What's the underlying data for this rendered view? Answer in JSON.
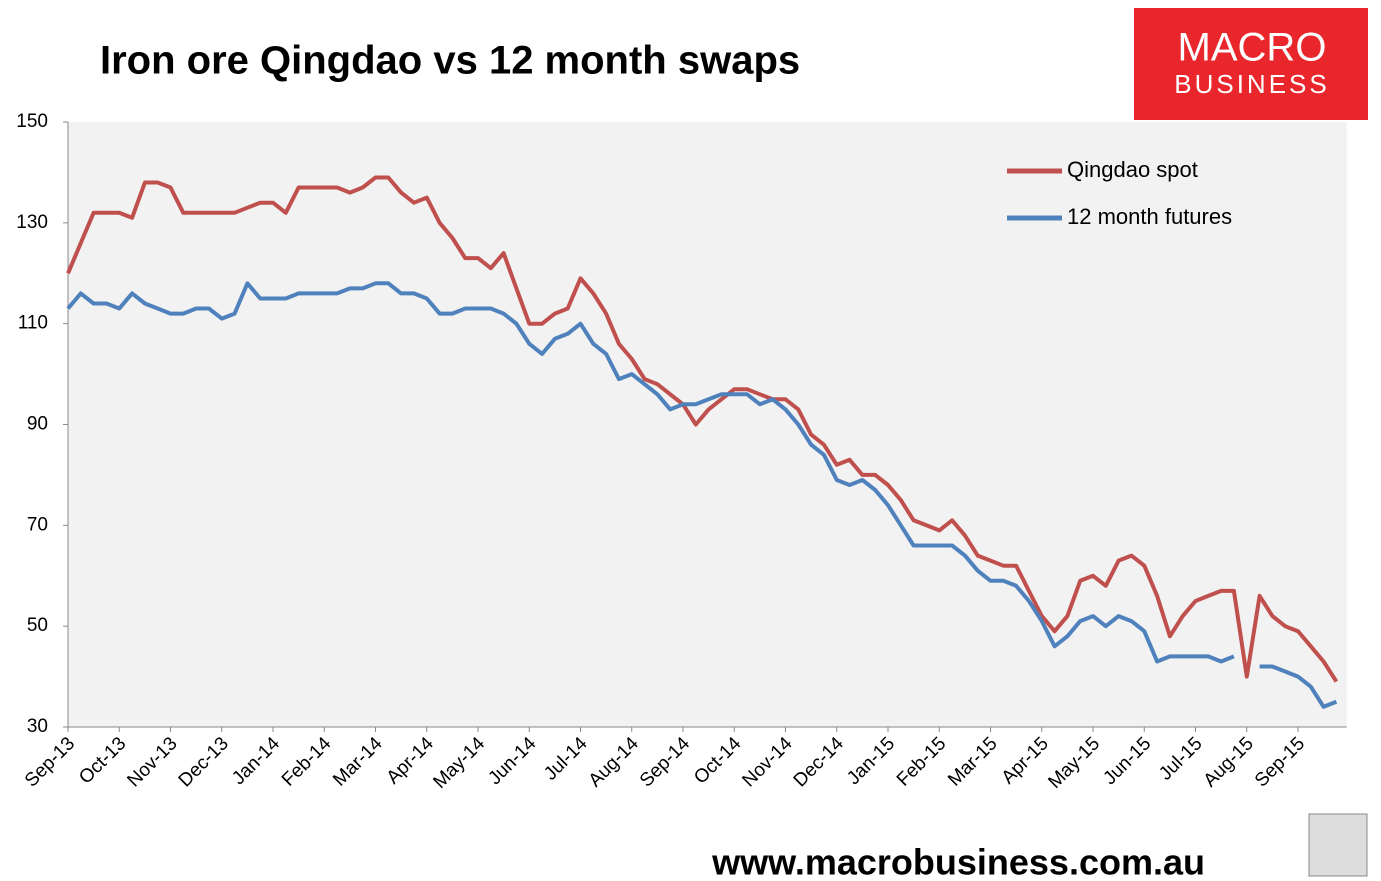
{
  "chart_data": {
    "type": "line",
    "title": "Iron ore Qingdao vs 12 month swaps",
    "logo": {
      "line1": "MACRO",
      "line2": "BUSINESS"
    },
    "footer": "www.macrobusiness.com.au",
    "categories": [
      "Sep-13",
      null,
      null,
      null,
      "Oct-13",
      null,
      null,
      null,
      "Nov-13",
      null,
      null,
      null,
      "Dec-13",
      null,
      null,
      null,
      "Jan-14",
      null,
      null,
      null,
      "Feb-14",
      null,
      null,
      null,
      "Mar-14",
      null,
      null,
      null,
      "Apr-14",
      null,
      null,
      null,
      "May-14",
      null,
      null,
      null,
      "Jun-14",
      null,
      null,
      null,
      "Jul-14",
      null,
      null,
      null,
      "Aug-14",
      null,
      null,
      null,
      "Sep-14",
      null,
      null,
      null,
      "Oct-14",
      null,
      null,
      null,
      "Nov-14",
      null,
      null,
      null,
      "Dec-14",
      null,
      null,
      null,
      "Jan-15",
      null,
      null,
      null,
      "Feb-15",
      null,
      null,
      null,
      "Mar-15",
      null,
      null,
      null,
      "Apr-15",
      null,
      null,
      null,
      "May-15",
      null,
      null,
      null,
      "Jun-15",
      null,
      null,
      null,
      "Jul-15",
      null,
      null,
      null,
      "Aug-15",
      null,
      null,
      null,
      "Sep-15",
      null,
      null,
      null
    ],
    "series": [
      {
        "name": "Qingdao spot",
        "color": "#c0504d",
        "values": [
          120,
          126,
          132,
          132,
          132,
          131,
          138,
          138,
          137,
          132,
          132,
          132,
          132,
          132,
          133,
          134,
          134,
          132,
          137,
          137,
          137,
          137,
          136,
          137,
          139,
          139,
          136,
          134,
          135,
          130,
          127,
          123,
          123,
          121,
          124,
          117,
          110,
          110,
          112,
          113,
          119,
          116,
          112,
          106,
          103,
          99,
          98,
          96,
          94,
          90,
          93,
          95,
          97,
          97,
          96,
          95,
          95,
          93,
          88,
          86,
          82,
          83,
          80,
          80,
          78,
          75,
          71,
          70,
          69,
          71,
          68,
          64,
          63,
          62,
          62,
          57,
          52,
          49,
          52,
          59,
          60,
          58,
          63,
          64,
          62,
          56,
          48,
          52,
          55,
          56,
          57,
          57,
          40,
          56,
          52,
          50,
          49,
          46,
          43,
          39
        ]
      },
      {
        "name": "12 month futures",
        "color": "#4f81bd",
        "values": [
          113,
          116,
          114,
          114,
          113,
          116,
          114,
          113,
          112,
          112,
          113,
          113,
          111,
          112,
          118,
          115,
          115,
          115,
          116,
          116,
          116,
          116,
          117,
          117,
          118,
          118,
          116,
          116,
          115,
          112,
          112,
          113,
          113,
          113,
          112,
          110,
          106,
          104,
          107,
          108,
          110,
          106,
          104,
          99,
          100,
          98,
          96,
          93,
          94,
          94,
          95,
          96,
          96,
          96,
          94,
          95,
          93,
          90,
          86,
          84,
          79,
          78,
          79,
          77,
          74,
          70,
          66,
          66,
          66,
          66,
          64,
          61,
          59,
          59,
          58,
          55,
          51,
          46,
          48,
          51,
          52,
          50,
          52,
          51,
          49,
          43,
          44,
          44,
          44,
          44,
          43,
          44,
          null,
          42,
          42,
          41,
          40,
          38,
          34,
          35
        ]
      }
    ],
    "ylim": [
      30,
      150
    ],
    "yticks": [
      30,
      50,
      70,
      90,
      110,
      130,
      150
    ],
    "legend": "top-right",
    "grid": false
  }
}
